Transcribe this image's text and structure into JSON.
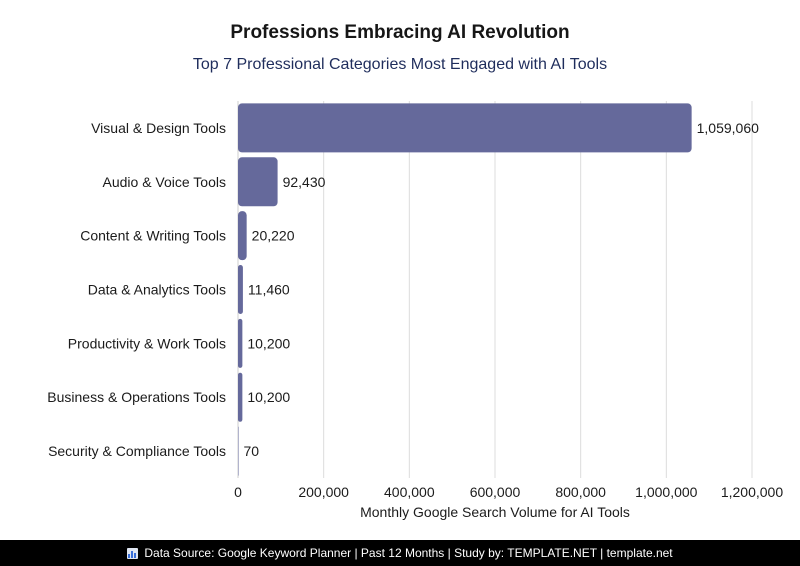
{
  "chart_data": {
    "type": "bar",
    "orientation": "horizontal",
    "title": "Professions Embracing AI Revolution",
    "subtitle": "Top 7 Professional Categories Most Engaged with AI Tools",
    "xlabel": "Monthly Google Search Volume for AI Tools",
    "ylabel": "",
    "categories": [
      "Visual & Design Tools",
      "Audio & Voice Tools",
      "Content & Writing Tools",
      "Data & Analytics Tools",
      "Productivity & Work Tools",
      "Business & Operations Tools",
      "Security & Compliance Tools"
    ],
    "values": [
      1059060,
      92430,
      20220,
      11460,
      10200,
      10200,
      70
    ],
    "value_labels": [
      "1,059,060",
      "92,430",
      "20,220",
      "11,460",
      "10,200",
      "10,200",
      "70"
    ],
    "xlim": [
      0,
      1200000
    ],
    "xticks": [
      0,
      200000,
      400000,
      600000,
      800000,
      1000000,
      1200000
    ],
    "xtick_labels": [
      "0",
      "200,000",
      "400,000",
      "600,000",
      "800,000",
      "1,000,000",
      "1,200,000"
    ],
    "grid": "vertical",
    "bar_color": "#65699b",
    "grid_color": "#dcdcdc"
  },
  "footer": {
    "text": "Data Source: Google Keyword Planner | Past 12 Months | Study by: TEMPLATE.NET | template.net",
    "icon": "bar-chart-icon"
  }
}
